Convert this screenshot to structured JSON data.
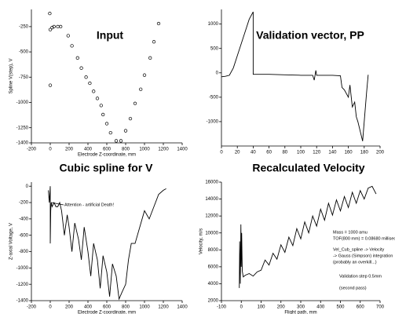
{
  "chart_data": [
    {
      "type": "scatter",
      "title": "Input",
      "xlabel": "Electrode Z-coordinate, mm",
      "ylabel": "Spline V(step), V",
      "color": "#000000",
      "x": [
        -5,
        0,
        20,
        40,
        80,
        110,
        0,
        190,
        230,
        290,
        330,
        380,
        420,
        460,
        500,
        540,
        560,
        600,
        640,
        700,
        750,
        800,
        850,
        900,
        960,
        1000,
        1060,
        1100,
        1150
      ],
      "values": [
        -120,
        -280,
        -260,
        -250,
        -250,
        -250,
        -830,
        -340,
        -440,
        -560,
        -660,
        -750,
        -810,
        -890,
        -960,
        -1030,
        -1120,
        -1210,
        -1300,
        -1380,
        -1380,
        -1280,
        -1160,
        -1010,
        -870,
        -730,
        -560,
        -400,
        -220
      ],
      "xlim": [
        -200,
        1400
      ],
      "xticks": [
        -200,
        0,
        200,
        400,
        600,
        800,
        1000,
        1200,
        1400
      ],
      "ylim": [
        -1400,
        -80
      ],
      "yticks": [
        -250,
        -500,
        -750,
        -1000,
        -1250,
        -1400
      ]
    },
    {
      "type": "line",
      "title": "Validation vector, PP",
      "color": "#000000",
      "x": [
        0,
        5,
        10,
        15,
        20,
        25,
        30,
        35,
        40,
        40,
        45,
        60,
        80,
        100,
        115,
        117,
        119,
        120,
        140,
        150,
        152,
        155,
        160,
        162,
        165,
        168,
        170,
        172,
        175,
        178,
        180,
        183,
        185
      ],
      "values": [
        -80,
        -70,
        -50,
        100,
        350,
        600,
        850,
        1100,
        1250,
        -30,
        -30,
        -30,
        -40,
        -50,
        -50,
        -150,
        50,
        -50,
        -50,
        -60,
        -300,
        -350,
        -500,
        -250,
        -700,
        -600,
        -900,
        -1000,
        -1200,
        -1400,
        -1000,
        -400,
        -40
      ],
      "xlim": [
        0,
        200
      ],
      "xticks": [
        0,
        20,
        40,
        60,
        80,
        100,
        120,
        140,
        160,
        180,
        200
      ],
      "ylim": [
        -1500,
        1300
      ],
      "yticks": [
        -1000,
        -500,
        0,
        500,
        1000
      ]
    },
    {
      "type": "line",
      "title": "Cubic spline for V",
      "xlabel": "Electrode Z-coordinate, mm",
      "ylabel": "Z-axial Voltage, V",
      "color": "#000000",
      "annotations": [
        "Attention - artificial Death!"
      ],
      "x": [
        -20,
        -10,
        0,
        0,
        5,
        10,
        20,
        40,
        60,
        80,
        100,
        120,
        150,
        180,
        200,
        230,
        260,
        300,
        330,
        360,
        400,
        430,
        460,
        500,
        530,
        560,
        600,
        630,
        660,
        700,
        730,
        760,
        800,
        830,
        860,
        900,
        950,
        1000,
        1050,
        1100,
        1150,
        1200,
        1230
      ],
      "values": [
        -50,
        -200,
        0,
        -700,
        -300,
        -200,
        -250,
        -200,
        -250,
        -250,
        -200,
        -300,
        -600,
        -350,
        -500,
        -800,
        -450,
        -650,
        -900,
        -500,
        -800,
        -1100,
        -700,
        -900,
        -1250,
        -850,
        -1050,
        -1350,
        -950,
        -1100,
        -1380,
        -1300,
        -1200,
        -900,
        -700,
        -700,
        -500,
        -300,
        -400,
        -250,
        -100,
        -50,
        -30
      ],
      "xlim": [
        -200,
        1400
      ],
      "xticks": [
        -200,
        0,
        200,
        400,
        600,
        800,
        1000,
        1200,
        1400
      ],
      "ylim": [
        -1400,
        50
      ],
      "yticks": [
        0,
        -200,
        -400,
        -600,
        -800,
        -1000,
        -1200,
        -1400
      ]
    },
    {
      "type": "line",
      "title": "Recalculated Velocity",
      "xlabel": "Flight path, mm",
      "ylabel": "Velocity, m/s",
      "color": "#000000",
      "annotations": [
        "Mass = 1000 amu",
        "TOF(800 mm) = 0.08680 millisec",
        "Vel_Cub_spline -> Velocity",
        "-> Gauss (Simpson) integration",
        "(probably an overkill...)",
        "Validation step 0.5mm",
        "(second pass)"
      ],
      "x": [
        -10,
        -8,
        -5,
        -2,
        0,
        2,
        5,
        10,
        20,
        40,
        60,
        80,
        100,
        120,
        140,
        160,
        180,
        200,
        220,
        240,
        260,
        280,
        300,
        320,
        340,
        360,
        380,
        400,
        420,
        440,
        460,
        480,
        500,
        520,
        540,
        560,
        580,
        600,
        620,
        640,
        660,
        680
      ],
      "values": [
        3500,
        9000,
        4000,
        11000,
        6000,
        10000,
        5500,
        4800,
        5000,
        5200,
        4900,
        5400,
        5600,
        6800,
        6200,
        7600,
        6900,
        8600,
        7700,
        9500,
        8500,
        10500,
        9300,
        11300,
        10000,
        12000,
        10800,
        12800,
        11500,
        13500,
        12100,
        13900,
        12600,
        14300,
        13000,
        14800,
        13500,
        15000,
        14000,
        15300,
        15500,
        14600
      ],
      "xlim": [
        -100,
        700
      ],
      "xticks": [
        -100,
        0,
        100,
        200,
        300,
        400,
        500,
        600,
        700
      ],
      "ylim": [
        2000,
        16000
      ],
      "yticks": [
        2000,
        4000,
        6000,
        8000,
        10000,
        12000,
        14000,
        16000
      ]
    }
  ]
}
